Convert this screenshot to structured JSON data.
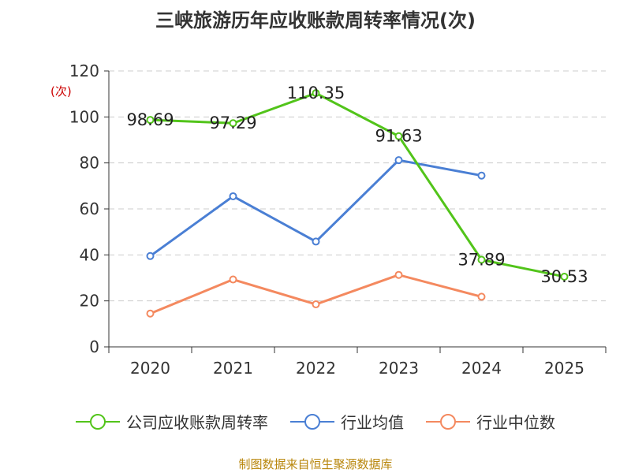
{
  "title": "三峡旅游历年应收账款周转率情况(次)",
  "source": "制图数据来自恒生聚源数据库",
  "chart_data": {
    "type": "line",
    "title": "三峡旅游历年应收账款周转率情况(次)",
    "ylabel": "(次)",
    "xlabel": "",
    "categories": [
      "2020",
      "2021",
      "2022",
      "2023",
      "2024",
      "2025"
    ],
    "ylim": [
      0,
      120
    ],
    "yticks": [
      0,
      20,
      40,
      60,
      80,
      100,
      120
    ],
    "grid": true,
    "legend_position": "bottom",
    "series": [
      {
        "name": "公司应收账款周转率",
        "color": "#52c41a",
        "values": [
          98.69,
          97.29,
          110.35,
          91.63,
          37.89,
          30.53
        ],
        "labels": [
          "98.69",
          "97.29",
          "110.35",
          "91.63",
          "37.89",
          "30.53"
        ],
        "show_labels": true
      },
      {
        "name": "行业均值",
        "color": "#4a7fd4",
        "values": [
          39.5,
          65.5,
          45.8,
          81.2,
          74.5,
          null
        ],
        "show_labels": false
      },
      {
        "name": "行业中位数",
        "color": "#f4895f",
        "values": [
          14.5,
          29.3,
          18.5,
          31.3,
          21.8,
          null
        ],
        "show_labels": false
      }
    ]
  }
}
